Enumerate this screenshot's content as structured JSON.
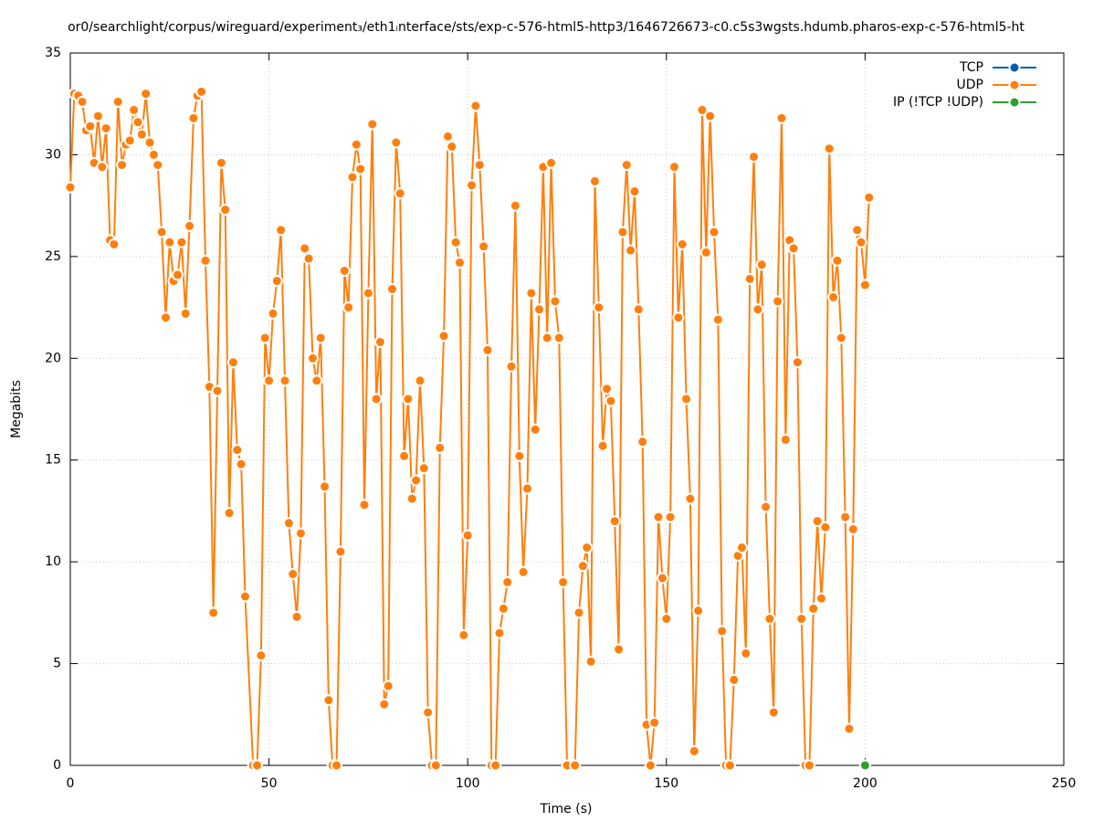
{
  "chart_data": {
    "type": "line",
    "title": "or0/searchlight/corpus/wireguard/experiment₃/eth1ᵢnterface/sts/exp-c-576-html5-http3/1646726673-c0.c5s3wgsts.hdumb.pharos-exp-c-576-html5-ht",
    "xlabel": "Time (s)",
    "ylabel": "Megabits",
    "xlim": [
      0,
      250
    ],
    "xticks": [
      0,
      50,
      100,
      150,
      200,
      250
    ],
    "ylim": [
      0,
      35
    ],
    "yticks": [
      0,
      5,
      10,
      15,
      20,
      25,
      30,
      35
    ],
    "grid": true,
    "legend": "upper right",
    "series": [
      {
        "name": "TCP",
        "color": "#0060ad",
        "x": [],
        "values": []
      },
      {
        "name": "UDP",
        "color": "#ff7f0e",
        "x": [
          0,
          1,
          2,
          3,
          4,
          5,
          6,
          7,
          8,
          9,
          10,
          11,
          12,
          13,
          14,
          15,
          16,
          17,
          18,
          19,
          20,
          21,
          22,
          23,
          24,
          25,
          26,
          27,
          28,
          29,
          30,
          31,
          32,
          33,
          34,
          35,
          36,
          37,
          38,
          39,
          40,
          41,
          42,
          43,
          44,
          46,
          47,
          48,
          49,
          50,
          51,
          52,
          53,
          54,
          55,
          56,
          57,
          58,
          59,
          60,
          61,
          62,
          63,
          64,
          65,
          66,
          67,
          68,
          69,
          70,
          71,
          72,
          73,
          74,
          75,
          76,
          77,
          78,
          79,
          80,
          81,
          82,
          83,
          84,
          85,
          86,
          87,
          88,
          89,
          90,
          91,
          92,
          93,
          94,
          95,
          96,
          97,
          98,
          99,
          100,
          101,
          102,
          103,
          104,
          105,
          106,
          107,
          108,
          109,
          110,
          111,
          112,
          113,
          114,
          115,
          116,
          117,
          118,
          119,
          120,
          121,
          122,
          123,
          124,
          125,
          127,
          128,
          129,
          130,
          131,
          132,
          133,
          134,
          135,
          136,
          137,
          138,
          139,
          140,
          141,
          142,
          143,
          144,
          145,
          146,
          147,
          148,
          149,
          150,
          151,
          152,
          153,
          154,
          155,
          156,
          157,
          158,
          159,
          160,
          161,
          162,
          163,
          164,
          165,
          166,
          167,
          168,
          169,
          170,
          171,
          172,
          173,
          174,
          175,
          176,
          177,
          178,
          179,
          180,
          181,
          182,
          183,
          184,
          185,
          186,
          187,
          188,
          189,
          190,
          191,
          192,
          193,
          194,
          195,
          196,
          197,
          198,
          199,
          200,
          201
        ],
        "values": [
          28.4,
          33.0,
          32.9,
          32.6,
          31.2,
          31.4,
          29.6,
          31.9,
          29.4,
          31.3,
          25.8,
          25.6,
          32.6,
          29.5,
          30.5,
          30.7,
          32.2,
          31.6,
          31.0,
          33.0,
          30.6,
          30.0,
          29.5,
          26.2,
          22.0,
          25.7,
          23.8,
          24.1,
          25.7,
          22.2,
          26.5,
          31.8,
          32.9,
          33.1,
          24.8,
          18.6,
          7.5,
          18.4,
          29.6,
          27.3,
          12.4,
          19.8,
          15.5,
          14.8,
          8.3,
          0,
          0,
          5.4,
          21.0,
          18.9,
          22.2,
          23.8,
          26.3,
          18.9,
          11.9,
          9.4,
          7.3,
          11.4,
          25.4,
          24.9,
          20.0,
          18.9,
          21.0,
          13.7,
          3.2,
          0,
          0,
          10.5,
          24.3,
          22.5,
          28.9,
          30.5,
          29.3,
          12.8,
          23.2,
          31.5,
          18.0,
          20.8,
          3.0,
          3.9,
          23.4,
          30.6,
          28.1,
          15.2,
          18.0,
          13.1,
          14.0,
          18.9,
          14.6,
          2.6,
          0,
          0,
          15.6,
          21.1,
          30.9,
          30.4,
          25.7,
          24.7,
          6.4,
          11.3,
          28.5,
          32.4,
          29.5,
          25.5,
          20.4,
          0,
          0,
          6.5,
          7.7,
          9.0,
          19.6,
          27.5,
          15.2,
          9.5,
          13.6,
          23.2,
          16.5,
          22.4,
          29.4,
          21.0,
          29.6,
          22.8,
          21.0,
          9.0,
          0,
          0,
          7.5,
          9.8,
          10.7,
          5.1,
          28.7,
          22.5,
          15.7,
          18.5,
          17.9,
          12.0,
          5.7,
          26.2,
          29.5,
          25.3,
          28.2,
          22.4,
          15.9,
          2.0,
          0,
          2.1,
          12.2,
          9.2,
          7.2,
          12.2,
          29.4,
          22.0,
          25.6,
          18.0,
          13.1,
          0.7,
          7.6,
          32.2,
          25.2,
          31.9,
          26.2,
          21.9,
          6.6,
          0,
          0,
          4.2,
          10.3,
          10.7,
          5.5,
          23.9,
          29.9,
          22.4,
          24.6,
          12.7,
          7.2,
          2.6,
          22.8,
          31.8,
          16.0,
          25.8,
          25.4,
          19.8,
          7.2,
          0,
          0,
          7.7,
          12.0,
          8.2,
          11.7,
          30.3,
          23.0,
          24.8,
          21.0,
          12.2,
          1.8,
          11.6,
          26.3,
          25.7,
          23.6,
          27.9
        ]
      },
      {
        "name": "IP (!TCP  !UDP)",
        "color": "#2ca02c",
        "x": [
          200
        ],
        "values": [
          0
        ]
      }
    ]
  }
}
